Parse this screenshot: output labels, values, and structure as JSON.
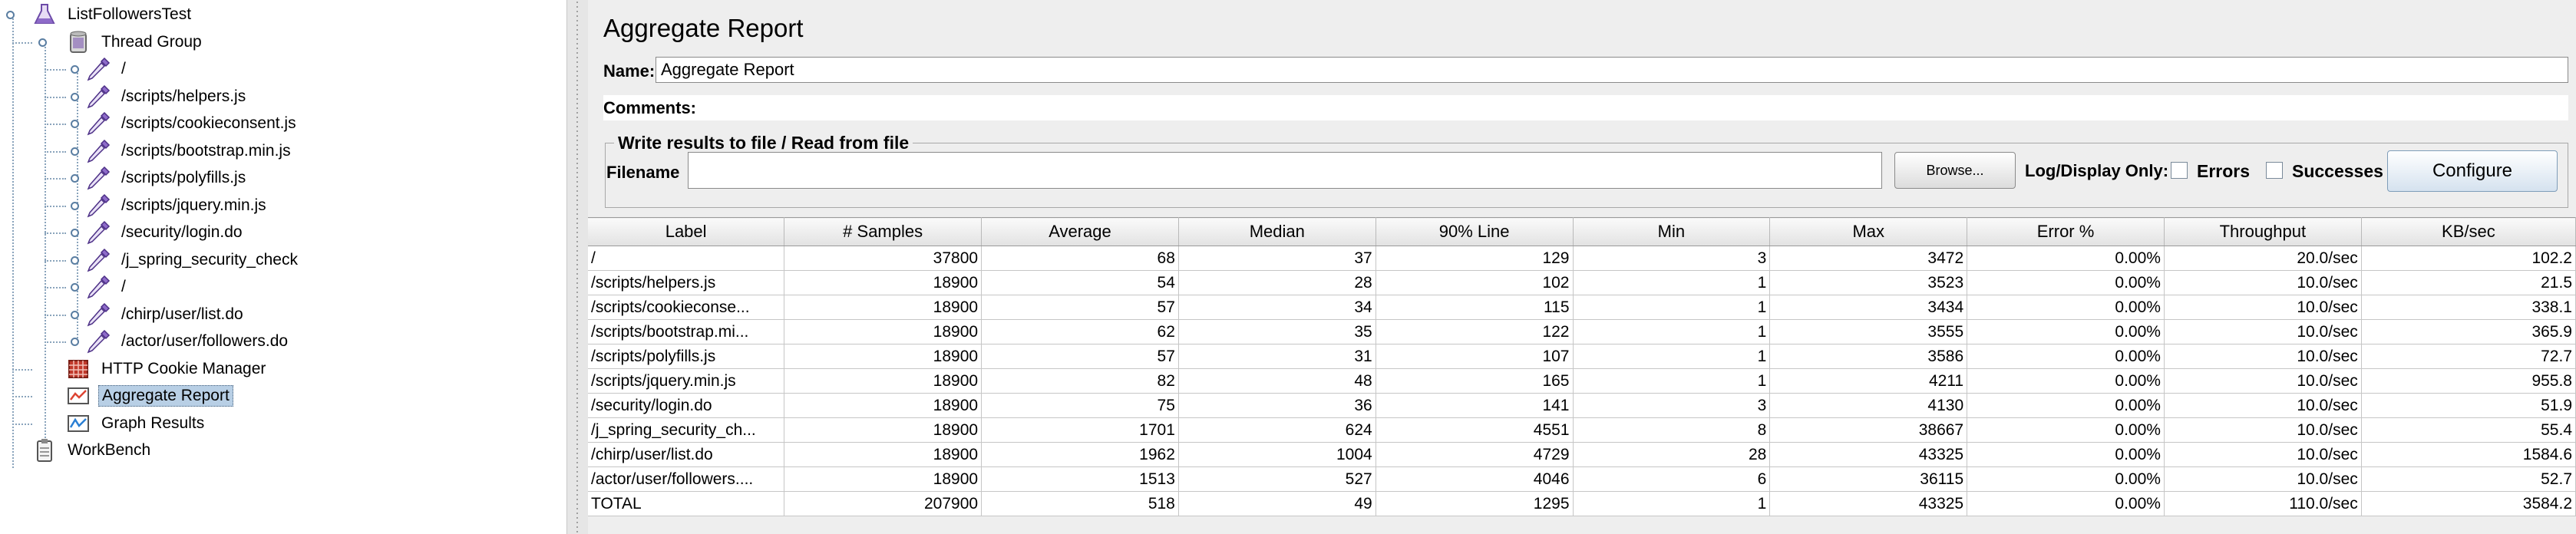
{
  "tree": {
    "nodes": [
      {
        "label": "ListFollowersTest",
        "icon": "flask-icon"
      },
      {
        "label": "Thread Group",
        "icon": "spool-icon"
      },
      {
        "label": "/",
        "icon": "pipette-icon"
      },
      {
        "label": "/scripts/helpers.js",
        "icon": "pipette-icon"
      },
      {
        "label": "/scripts/cookieconsent.js",
        "icon": "pipette-icon"
      },
      {
        "label": "/scripts/bootstrap.min.js",
        "icon": "pipette-icon"
      },
      {
        "label": "/scripts/polyfills.js",
        "icon": "pipette-icon"
      },
      {
        "label": "/scripts/jquery.min.js",
        "icon": "pipette-icon"
      },
      {
        "label": "/security/login.do",
        "icon": "pipette-icon"
      },
      {
        "label": "/j_spring_security_check",
        "icon": "pipette-icon"
      },
      {
        "label": "/",
        "icon": "pipette-icon"
      },
      {
        "label": "/chirp/user/list.do",
        "icon": "pipette-icon"
      },
      {
        "label": "/actor/user/followers.do",
        "icon": "pipette-icon"
      },
      {
        "label": "HTTP Cookie Manager",
        "icon": "cookie-manager-icon"
      },
      {
        "label": "Aggregate Report",
        "icon": "report-icon",
        "selected": true
      },
      {
        "label": "Graph Results",
        "icon": "graph-icon"
      },
      {
        "label": "WorkBench",
        "icon": "clipboard-icon"
      }
    ]
  },
  "panel": {
    "title": "Aggregate Report",
    "name_label": "Name:",
    "name_value": "Aggregate Report",
    "comments_label": "Comments:",
    "file_group_title": "Write results to file / Read from file",
    "filename_label": "Filename",
    "filename_value": "",
    "browse_label": "Browse...",
    "log_display_label": "Log/Display Only:",
    "errors_label": "Errors",
    "successes_label": "Successes",
    "configure_label": "Configure"
  },
  "table": {
    "headers": [
      "Label",
      "# Samples",
      "Average",
      "Median",
      "90% Line",
      "Min",
      "Max",
      "Error %",
      "Throughput",
      "KB/sec"
    ],
    "rows": [
      [
        "/",
        "37800",
        "68",
        "37",
        "129",
        "3",
        "3472",
        "0.00%",
        "20.0/sec",
        "102.2"
      ],
      [
        "/scripts/helpers.js",
        "18900",
        "54",
        "28",
        "102",
        "1",
        "3523",
        "0.00%",
        "10.0/sec",
        "21.5"
      ],
      [
        "/scripts/cookieconse...",
        "18900",
        "57",
        "34",
        "115",
        "1",
        "3434",
        "0.00%",
        "10.0/sec",
        "338.1"
      ],
      [
        "/scripts/bootstrap.mi...",
        "18900",
        "62",
        "35",
        "122",
        "1",
        "3555",
        "0.00%",
        "10.0/sec",
        "365.9"
      ],
      [
        "/scripts/polyfills.js",
        "18900",
        "57",
        "31",
        "107",
        "1",
        "3586",
        "0.00%",
        "10.0/sec",
        "72.7"
      ],
      [
        "/scripts/jquery.min.js",
        "18900",
        "82",
        "48",
        "165",
        "1",
        "4211",
        "0.00%",
        "10.0/sec",
        "955.8"
      ],
      [
        "/security/login.do",
        "18900",
        "75",
        "36",
        "141",
        "3",
        "4130",
        "0.00%",
        "10.0/sec",
        "51.9"
      ],
      [
        "/j_spring_security_ch...",
        "18900",
        "1701",
        "624",
        "4551",
        "8",
        "38667",
        "0.00%",
        "10.0/sec",
        "55.4"
      ],
      [
        "/chirp/user/list.do",
        "18900",
        "1962",
        "1004",
        "4729",
        "28",
        "43325",
        "0.00%",
        "10.0/sec",
        "1584.6"
      ],
      [
        "/actor/user/followers....",
        "18900",
        "1513",
        "527",
        "4046",
        "6",
        "36115",
        "0.00%",
        "10.0/sec",
        "52.7"
      ],
      [
        "TOTAL",
        "207900",
        "518",
        "49",
        "1295",
        "1",
        "43325",
        "0.00%",
        "110.0/sec",
        "3584.2"
      ]
    ]
  },
  "colors": {
    "tree_selection": "#b8cfe5",
    "panel_background": "#eeeeee",
    "tree_line": "#8aa4bc"
  }
}
